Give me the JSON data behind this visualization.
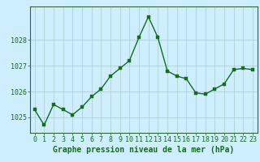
{
  "x": [
    0,
    1,
    2,
    3,
    4,
    5,
    6,
    7,
    8,
    9,
    10,
    11,
    12,
    13,
    14,
    15,
    16,
    17,
    18,
    19,
    20,
    21,
    22,
    23
  ],
  "y": [
    1025.3,
    1024.7,
    1025.5,
    1025.3,
    1025.1,
    1025.4,
    1025.8,
    1026.1,
    1026.6,
    1026.9,
    1027.2,
    1028.1,
    1028.9,
    1028.1,
    1026.8,
    1026.6,
    1026.5,
    1025.95,
    1025.9,
    1026.1,
    1026.3,
    1026.85,
    1026.9,
    1026.85
  ],
  "line_color": "#1a6b1a",
  "marker_color": "#1a6b1a",
  "bg_color": "#cceeff",
  "grid_color": "#aacccc",
  "xlabel": "Graphe pression niveau de la mer (hPa)",
  "xlabel_color": "#1a6b1a",
  "tick_color": "#1a6b1a",
  "ylim": [
    1024.4,
    1029.3
  ],
  "yticks": [
    1025,
    1026,
    1027,
    1028
  ],
  "xticks": [
    0,
    1,
    2,
    3,
    4,
    5,
    6,
    7,
    8,
    9,
    10,
    11,
    12,
    13,
    14,
    15,
    16,
    17,
    18,
    19,
    20,
    21,
    22,
    23
  ],
  "marker_size": 2.5,
  "line_width": 1.0,
  "xlabel_fontsize": 7.0,
  "tick_fontsize": 6.0,
  "spine_color": "#336633"
}
